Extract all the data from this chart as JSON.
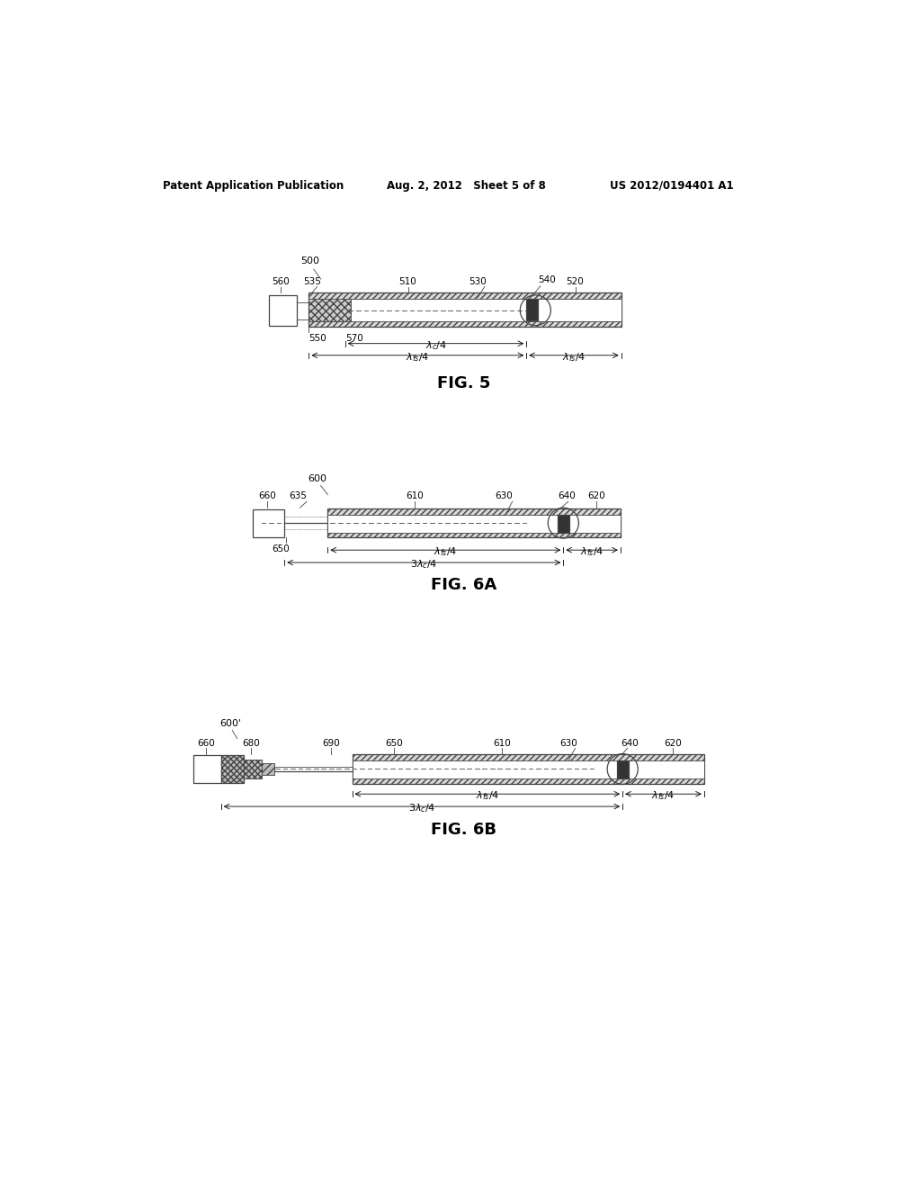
{
  "bg_color": "#ffffff",
  "header_left": "Patent Application Publication",
  "header_mid": "Aug. 2, 2012   Sheet 5 of 8",
  "header_right": "US 2012/0194401 A1",
  "fig5_label": "FIG. 5",
  "fig6a_label": "FIG. 6A",
  "fig6b_label": "FIG. 6B"
}
